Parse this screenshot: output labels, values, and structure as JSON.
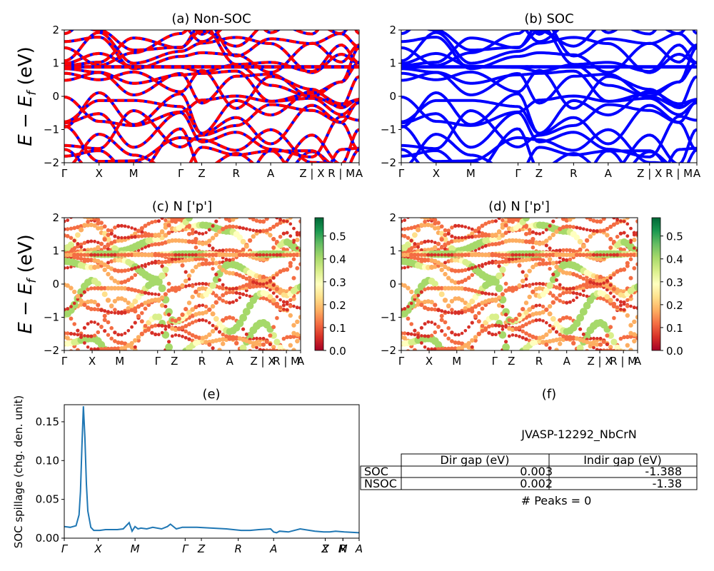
{
  "figure": {
    "ylabel_energy": "E − E",
    "ylabel_energy_sub": "f",
    "ylabel_energy_unit": "(eV)",
    "ylabel_spillage": "SOC spillage (chg. den. unit)"
  },
  "kpath": {
    "labels": [
      "Γ",
      "X",
      "M",
      "Γ",
      "Z",
      "R",
      "A",
      "Z | X",
      "R | M",
      "A"
    ],
    "spillage_labels": [
      "Γ",
      "X",
      "M",
      "Γ",
      "Z",
      "R",
      "A",
      "Z",
      "X",
      "R",
      "M",
      "A"
    ]
  },
  "colors": {
    "nonsoc_red": "#ff0000",
    "nonsoc_blue": "#0000ff",
    "soc_blue": "#0000ff",
    "spillage_line": "#1f77b4",
    "cmap": [
      "#a50026",
      "#d73027",
      "#f46d43",
      "#fdae61",
      "#fee08b",
      "#ffffbf",
      "#d9ef8b",
      "#a6d96a",
      "#66bd63",
      "#1a9850",
      "#006837"
    ]
  },
  "chart_data": [
    {
      "id": "a",
      "type": "line",
      "title": "(a) Non-SOC",
      "ylim": [
        -2,
        2
      ],
      "yticks": [
        -2,
        -1,
        0,
        1,
        2
      ],
      "xlabel": "",
      "ylabel": "E − E_f (eV)",
      "style": "red-blue dashed bands"
    },
    {
      "id": "b",
      "type": "line",
      "title": "(b) SOC",
      "ylim": [
        -2,
        2
      ],
      "yticks": [
        -2,
        -1,
        0,
        1,
        2
      ],
      "style": "blue bands"
    },
    {
      "id": "c",
      "type": "scatter",
      "title": "(c)  N ['p']",
      "ylim": [
        -2,
        2
      ],
      "yticks": [
        -2,
        -1,
        0,
        1,
        2
      ],
      "colorbar_ticks": [
        "0.0",
        "0.1",
        "0.2",
        "0.3",
        "0.4",
        "0.5"
      ],
      "colorbar_range": [
        0,
        0.58
      ]
    },
    {
      "id": "d",
      "type": "scatter",
      "title": "(d) N ['p']",
      "ylim": [
        -2,
        2
      ],
      "yticks": [
        -2,
        -1,
        0,
        1,
        2
      ],
      "colorbar_ticks": [
        "0.0",
        "0.1",
        "0.2",
        "0.3",
        "0.4",
        "0.5"
      ],
      "colorbar_range": [
        0,
        0.58
      ]
    },
    {
      "id": "e",
      "type": "line",
      "title": "(e)",
      "ylabel": "SOC spillage (chg. den. unit)",
      "ylim": [
        0,
        0.172
      ],
      "yticks": [
        "0.00",
        "0.05",
        "0.10",
        "0.15"
      ],
      "x": [
        0,
        0.02,
        0.04,
        0.05,
        0.055,
        0.06,
        0.065,
        0.07,
        0.075,
        0.08,
        0.09,
        0.1,
        0.12,
        0.14,
        0.16,
        0.18,
        0.2,
        0.22,
        0.23,
        0.24,
        0.25,
        0.26,
        0.28,
        0.3,
        0.33,
        0.35,
        0.36,
        0.38,
        0.4,
        0.43,
        0.45,
        0.5,
        0.55,
        0.6,
        0.63,
        0.66,
        0.7,
        0.71,
        0.72,
        0.73,
        0.76,
        0.8,
        0.85,
        0.88,
        0.9,
        0.92,
        0.95,
        1.0
      ],
      "y": [
        0.015,
        0.014,
        0.016,
        0.03,
        0.06,
        0.12,
        0.17,
        0.13,
        0.07,
        0.035,
        0.014,
        0.01,
        0.01,
        0.011,
        0.011,
        0.011,
        0.012,
        0.02,
        0.009,
        0.015,
        0.012,
        0.013,
        0.012,
        0.014,
        0.012,
        0.015,
        0.018,
        0.012,
        0.014,
        0.014,
        0.014,
        0.013,
        0.012,
        0.01,
        0.01,
        0.011,
        0.012,
        0.008,
        0.007,
        0.009,
        0.008,
        0.012,
        0.009,
        0.008,
        0.008,
        0.009,
        0.008,
        0.007
      ]
    }
  ],
  "panel_f": {
    "title": "(f)",
    "material": "JVASP-12292_NbCrN",
    "columns": [
      "Dir gap (eV)",
      "Indir gap (eV)"
    ],
    "rows": [
      {
        "label": "SOC",
        "dir": "0.003",
        "indir": "-1.388"
      },
      {
        "label": "NSOC",
        "dir": "0.002",
        "indir": "-1.38"
      }
    ],
    "peaks": "# Peaks = 0"
  }
}
